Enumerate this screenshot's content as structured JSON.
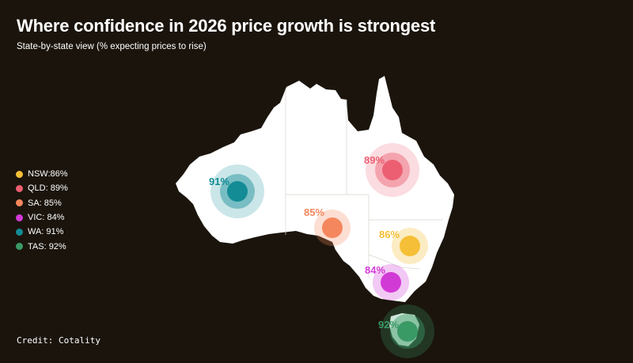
{
  "title": "Where confidence in 2026 price growth is strongest",
  "subtitle": "State-by-state view (% expecting prices to rise)",
  "credit": "Credit: Cotality",
  "legend": [
    {
      "label": "NSW:86%",
      "color": "#f5c037"
    },
    {
      "label": "QLD: 89%",
      "color": "#ec5f72"
    },
    {
      "label": "SA: 85%",
      "color": "#f5875e"
    },
    {
      "label": "VIC: 84%",
      "color": "#d23ad6"
    },
    {
      "label": "WA: 91%",
      "color": "#138c96"
    },
    {
      "label": "TAS: 92%",
      "color": "#3a9a66"
    }
  ],
  "markers": {
    "nsw": {
      "label": "86%",
      "value": 86,
      "color": "#f5c037"
    },
    "qld": {
      "label": "89%",
      "value": 89,
      "color": "#ec5f72"
    },
    "sa": {
      "label": "85%",
      "value": 85,
      "color": "#f5875e"
    },
    "vic": {
      "label": "84%",
      "value": 84,
      "color": "#d23ad6"
    },
    "wa": {
      "label": "91%",
      "value": 91,
      "color": "#138c96"
    },
    "tas": {
      "label": "92%",
      "value": 92,
      "color": "#3a9a66"
    }
  }
}
